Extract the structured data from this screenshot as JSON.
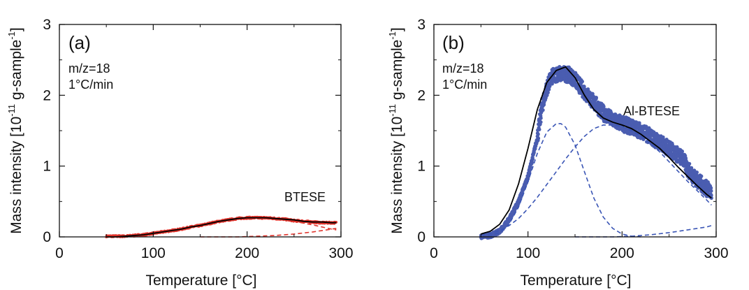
{
  "chart_data": [
    {
      "type": "scatter",
      "panel_label": "(a)",
      "annotation_lines": [
        "m/z=18",
        "1°C/min"
      ],
      "series_label": "BTESE",
      "series_label_color": "#e0342c",
      "xlabel": "Temperature [°C]",
      "ylabel_main": "Mass intensity [10",
      "ylabel_exp": "-11",
      "ylabel_tail": " g-sample",
      "ylabel_tail_exp": "-1",
      "ylabel_close": "]",
      "xlim": [
        0,
        300
      ],
      "ylim": [
        0,
        3
      ],
      "xticks": [
        "0",
        "100",
        "200",
        "300"
      ],
      "yticks": [
        "0",
        "1",
        "2",
        "3"
      ],
      "grid": false,
      "data_color": "#e0342c",
      "measured": {
        "x": [
          50,
          60,
          70,
          80,
          90,
          100,
          110,
          120,
          130,
          140,
          150,
          160,
          170,
          180,
          190,
          200,
          210,
          220,
          230,
          240,
          250,
          260,
          270,
          280,
          290,
          295
        ],
        "y": [
          0.01,
          0.01,
          0.01,
          0.02,
          0.03,
          0.05,
          0.07,
          0.09,
          0.11,
          0.14,
          0.16,
          0.19,
          0.22,
          0.24,
          0.26,
          0.27,
          0.27,
          0.27,
          0.26,
          0.25,
          0.23,
          0.22,
          0.21,
          0.2,
          0.2,
          0.2
        ]
      },
      "fit_total": {
        "x": [
          50,
          60,
          70,
          80,
          90,
          100,
          110,
          120,
          130,
          140,
          150,
          160,
          170,
          180,
          190,
          200,
          210,
          220,
          230,
          240,
          250,
          260,
          270,
          280,
          290,
          295
        ],
        "y": [
          0.0,
          0.0,
          0.01,
          0.02,
          0.03,
          0.05,
          0.07,
          0.09,
          0.11,
          0.14,
          0.16,
          0.19,
          0.22,
          0.24,
          0.26,
          0.27,
          0.27,
          0.27,
          0.26,
          0.25,
          0.24,
          0.22,
          0.21,
          0.21,
          0.2,
          0.2
        ]
      },
      "fit_components": [
        {
          "x": [
            50,
            70,
            90,
            110,
            130,
            150,
            170,
            190,
            210,
            230,
            250,
            270,
            290,
            295
          ],
          "y": [
            0.0,
            0.01,
            0.03,
            0.07,
            0.11,
            0.16,
            0.21,
            0.25,
            0.26,
            0.25,
            0.22,
            0.17,
            0.11,
            0.1
          ]
        },
        {
          "x": [
            150,
            170,
            190,
            210,
            230,
            250,
            270,
            280,
            290,
            295
          ],
          "y": [
            0.0,
            0.0,
            0.0,
            0.01,
            0.02,
            0.04,
            0.07,
            0.09,
            0.11,
            0.12
          ]
        }
      ]
    },
    {
      "type": "scatter",
      "panel_label": "(b)",
      "annotation_lines": [
        "m/z=18",
        "1°C/min"
      ],
      "series_label": "Al-BTESE",
      "series_label_color": "#4a5db0",
      "xlabel": "Temperature [°C]",
      "ylabel_main": "Mass intensity [10",
      "ylabel_exp": "-11",
      "ylabel_tail": " g-sample",
      "ylabel_tail_exp": "-1",
      "ylabel_close": "]",
      "xlim": [
        0,
        300
      ],
      "ylim": [
        0,
        3
      ],
      "xticks": [
        "0",
        "100",
        "200",
        "300"
      ],
      "yticks": [
        "0",
        "1",
        "2",
        "3"
      ],
      "grid": false,
      "data_color": "#4a5db0",
      "measured": {
        "x": [
          50,
          60,
          70,
          80,
          90,
          100,
          110,
          115,
          120,
          125,
          130,
          135,
          140,
          145,
          150,
          160,
          170,
          180,
          190,
          200,
          210,
          220,
          230,
          240,
          250,
          260,
          265,
          270,
          280,
          290,
          295
        ],
        "y": [
          0.01,
          0.02,
          0.08,
          0.25,
          0.5,
          0.85,
          1.4,
          1.85,
          2.1,
          2.25,
          2.3,
          2.3,
          2.3,
          2.28,
          2.22,
          2.05,
          1.9,
          1.75,
          1.65,
          1.6,
          1.55,
          1.5,
          1.42,
          1.33,
          1.25,
          1.15,
          1.1,
          0.95,
          0.8,
          0.68,
          0.62
        ]
      },
      "fit_total": {
        "x": [
          50,
          60,
          70,
          80,
          90,
          100,
          110,
          120,
          130,
          140,
          150,
          160,
          170,
          180,
          190,
          200,
          210,
          220,
          230,
          240,
          250,
          260,
          270,
          280,
          290,
          295
        ],
        "y": [
          0.04,
          0.08,
          0.18,
          0.38,
          0.75,
          1.25,
          1.8,
          2.18,
          2.35,
          2.4,
          2.25,
          2.0,
          1.8,
          1.68,
          1.62,
          1.58,
          1.53,
          1.45,
          1.35,
          1.25,
          1.12,
          0.98,
          0.85,
          0.72,
          0.6,
          0.55
        ]
      },
      "fit_components": [
        {
          "x": [
            50,
            60,
            70,
            80,
            90,
            100,
            110,
            120,
            130,
            135,
            140,
            150,
            160,
            170,
            180,
            190,
            200,
            210,
            220
          ],
          "y": [
            0.0,
            0.02,
            0.06,
            0.18,
            0.42,
            0.78,
            1.18,
            1.48,
            1.6,
            1.6,
            1.55,
            1.3,
            0.92,
            0.55,
            0.28,
            0.12,
            0.04,
            0.01,
            0.0
          ]
        },
        {
          "x": [
            50,
            60,
            70,
            80,
            90,
            100,
            110,
            120,
            130,
            140,
            150,
            160,
            170,
            180,
            190,
            200,
            210,
            220,
            230,
            240,
            250,
            260,
            270,
            280,
            290,
            295
          ],
          "y": [
            0.03,
            0.05,
            0.09,
            0.16,
            0.26,
            0.4,
            0.56,
            0.74,
            0.92,
            1.1,
            1.27,
            1.42,
            1.53,
            1.58,
            1.58,
            1.56,
            1.5,
            1.42,
            1.32,
            1.2,
            1.06,
            0.92,
            0.78,
            0.65,
            0.52,
            0.45
          ]
        },
        {
          "x": [
            150,
            170,
            190,
            210,
            230,
            250,
            270,
            290,
            295
          ],
          "y": [
            0.0,
            0.0,
            0.0,
            0.01,
            0.03,
            0.06,
            0.1,
            0.14,
            0.16
          ]
        }
      ]
    }
  ]
}
